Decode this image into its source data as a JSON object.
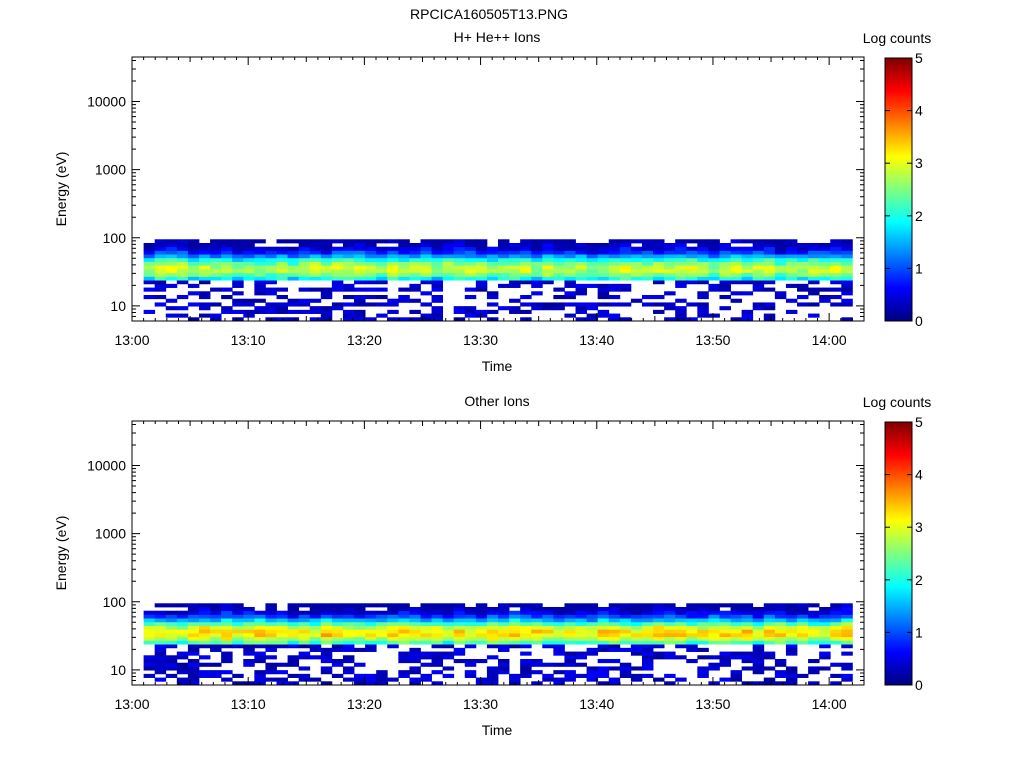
{
  "figure_title": "RPCICA160505T13.PNG",
  "colors": {
    "colormap": [
      "#00007f",
      "#0000ff",
      "#007fff",
      "#00ffff",
      "#7fff7f",
      "#ffff00",
      "#ff7f00",
      "#ff0000",
      "#7f0000"
    ],
    "background": "#ffffff",
    "axis": "#000000"
  },
  "chart_data": [
    {
      "type": "heatmap",
      "title": "H+ He++ Ions",
      "xlabel": "Time",
      "ylabel": "Energy (eV)",
      "x_ticks": [
        "13:00",
        "13:10",
        "13:20",
        "13:30",
        "13:40",
        "13:50",
        "14:00"
      ],
      "x_tick_minutes": [
        0,
        10,
        20,
        30,
        40,
        50,
        60
      ],
      "xlim_minutes": [
        0,
        63
      ],
      "data_xlim_minutes": [
        1,
        62
      ],
      "y_scale": "log",
      "ylim": [
        6,
        45000
      ],
      "y_ticks": [
        10,
        100,
        1000,
        10000
      ],
      "y_tick_labels": [
        "10",
        "100",
        "1000",
        "10000"
      ],
      "colorbar": {
        "label": "Log counts",
        "ticks": [
          "0",
          "1",
          "2",
          "3",
          "4",
          "5"
        ],
        "range": [
          0,
          5
        ]
      },
      "peak_energy_eV": 35,
      "peak_log_counts": 2.8,
      "data_energy_range_eV": [
        6,
        95
      ]
    },
    {
      "type": "heatmap",
      "title": "Other Ions",
      "xlabel": "Time",
      "ylabel": "Energy (eV)",
      "x_ticks": [
        "13:00",
        "13:10",
        "13:20",
        "13:30",
        "13:40",
        "13:50",
        "14:00"
      ],
      "x_tick_minutes": [
        0,
        10,
        20,
        30,
        40,
        50,
        60
      ],
      "xlim_minutes": [
        0,
        63
      ],
      "data_xlim_minutes": [
        1,
        62
      ],
      "y_scale": "log",
      "ylim": [
        6,
        45000
      ],
      "y_ticks": [
        10,
        100,
        1000,
        10000
      ],
      "y_tick_labels": [
        "10",
        "100",
        "1000",
        "10000"
      ],
      "colorbar": {
        "label": "Log counts",
        "ticks": [
          "0",
          "1",
          "2",
          "3",
          "4",
          "5"
        ],
        "range": [
          0,
          5
        ]
      },
      "peak_energy_eV": 35,
      "peak_log_counts": 3.3,
      "data_energy_range_eV": [
        6,
        95
      ]
    }
  ]
}
